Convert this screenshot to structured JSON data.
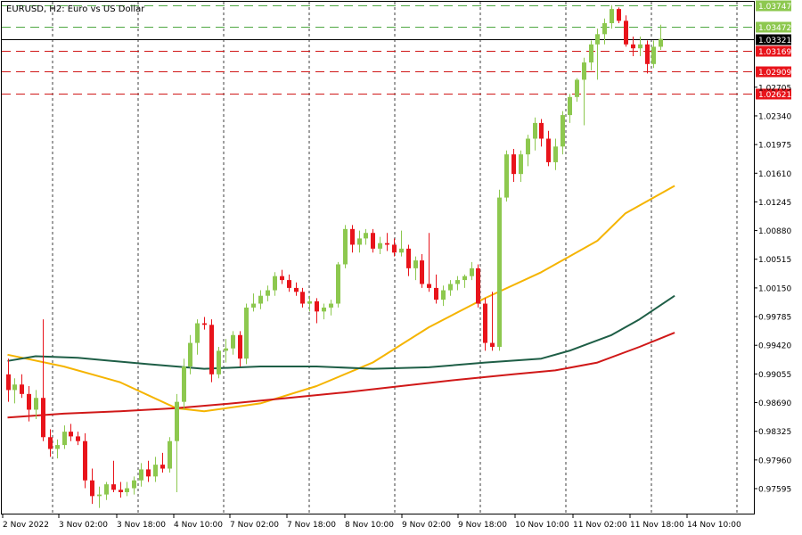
{
  "header": {
    "symbol": "EURUSD",
    "timeframe": "H2",
    "description": "Euro vs US Dollar",
    "title_text": "EURUSD, H2:  Euro vs US Dollar"
  },
  "colors": {
    "bull": "#8dc84f",
    "bear": "#e8141b",
    "ma_fast": "#f5b400",
    "ma_mid": "#1e5e46",
    "ma_slow": "#d01818",
    "resistance": "#4fa842",
    "support": "#d01818",
    "current": "#000000",
    "grid": "#000000"
  },
  "chart_data": {
    "type": "candlestick",
    "instrument": "EURUSD",
    "timeframe": "H2",
    "ylim": [
      0.9735,
      1.0385
    ],
    "grid": "vertical dashed",
    "price_ticks": [
      "1.03747",
      "1.03472",
      "1.03321",
      "1.03169",
      "1.02909",
      "1.02705",
      "1.02621",
      "1.02340",
      "1.01975",
      "1.01610",
      "1.01245",
      "1.00880",
      "1.00515",
      "1.00150",
      "0.99785",
      "0.99420",
      "0.99055",
      "0.98690",
      "0.98325",
      "0.97960",
      "0.97595"
    ],
    "time_labels": [
      "2 Nov 2022",
      "3 Nov 02:00",
      "3 Nov 18:00",
      "4 Nov 10:00",
      "7 Nov 02:00",
      "7 Nov 18:00",
      "8 Nov 10:00",
      "9 Nov 02:00",
      "9 Nov 18:00",
      "10 Nov 10:00",
      "11 Nov 02:00",
      "11 Nov 18:00",
      "14 Nov 10:00"
    ],
    "horizontal_levels": [
      {
        "price": 1.03747,
        "label": "1.03747",
        "kind": "resistance"
      },
      {
        "price": 1.03472,
        "label": "1.03472",
        "kind": "resistance"
      },
      {
        "price": 1.03321,
        "label": "1.03321",
        "kind": "current"
      },
      {
        "price": 1.03169,
        "label": "1.03169",
        "kind": "support"
      },
      {
        "price": 1.02909,
        "label": "1.02909",
        "kind": "support"
      },
      {
        "price": 1.02621,
        "label": "1.02621",
        "kind": "support"
      }
    ],
    "candles": [
      [
        0.9905,
        0.9925,
        0.987,
        0.9885
      ],
      [
        0.9885,
        0.99,
        0.9868,
        0.9892
      ],
      [
        0.9892,
        0.9905,
        0.9875,
        0.988
      ],
      [
        0.988,
        0.989,
        0.9845,
        0.986
      ],
      [
        0.986,
        0.9885,
        0.9848,
        0.9875
      ],
      [
        0.9875,
        0.9975,
        0.982,
        0.9825
      ],
      [
        0.9825,
        0.9835,
        0.98,
        0.981
      ],
      [
        0.981,
        0.9822,
        0.9798,
        0.9815
      ],
      [
        0.9815,
        0.984,
        0.981,
        0.9832
      ],
      [
        0.9832,
        0.9842,
        0.982,
        0.9826
      ],
      [
        0.9826,
        0.9832,
        0.9815,
        0.982
      ],
      [
        0.982,
        0.983,
        0.976,
        0.977
      ],
      [
        0.977,
        0.9785,
        0.974,
        0.975
      ],
      [
        0.975,
        0.9762,
        0.9735,
        0.9752
      ],
      [
        0.9752,
        0.9768,
        0.9745,
        0.9765
      ],
      [
        0.9765,
        0.9795,
        0.9755,
        0.9758
      ],
      [
        0.9758,
        0.9768,
        0.9748,
        0.9755
      ],
      [
        0.9755,
        0.9768,
        0.975,
        0.976
      ],
      [
        0.976,
        0.9775,
        0.9752,
        0.977
      ],
      [
        0.977,
        0.9792,
        0.9762,
        0.9784
      ],
      [
        0.9784,
        0.9795,
        0.9768,
        0.9775
      ],
      [
        0.9775,
        0.98,
        0.9768,
        0.979
      ],
      [
        0.979,
        0.9805,
        0.978,
        0.9785
      ],
      [
        0.9785,
        0.9825,
        0.978,
        0.982
      ],
      [
        0.982,
        0.988,
        0.9755,
        0.987
      ],
      [
        0.987,
        0.9925,
        0.986,
        0.9915
      ],
      [
        0.9915,
        0.9955,
        0.9905,
        0.9945
      ],
      [
        0.9945,
        0.9975,
        0.993,
        0.997
      ],
      [
        0.997,
        0.9978,
        0.9962,
        0.9968
      ],
      [
        0.9968,
        0.9975,
        0.9895,
        0.9905
      ],
      [
        0.9905,
        0.994,
        0.99,
        0.9935
      ],
      [
        0.9935,
        0.995,
        0.992,
        0.9938
      ],
      [
        0.9938,
        0.996,
        0.993,
        0.9955
      ],
      [
        0.9955,
        0.996,
        0.9915,
        0.9925
      ],
      [
        0.9925,
        0.9995,
        0.9918,
        0.999
      ],
      [
        0.999,
        1.0008,
        0.9985,
        0.9995
      ],
      [
        0.9995,
        1.0012,
        0.9988,
        1.0005
      ],
      [
        1.0005,
        1.0018,
        0.9998,
        1.0012
      ],
      [
        1.0012,
        1.0035,
        1.0005,
        1.003
      ],
      [
        1.003,
        1.0038,
        1.002,
        1.0025
      ],
      [
        1.0025,
        1.0032,
        1.001,
        1.0015
      ],
      [
        1.0015,
        1.0022,
        1.0005,
        1.001
      ],
      [
        1.001,
        1.0015,
        0.999,
        0.9995
      ],
      [
        0.9995,
        1.0005,
        0.9985,
        0.9998
      ],
      [
        0.9998,
        1.0002,
        0.997,
        0.9985
      ],
      [
        0.9985,
        0.9995,
        0.9975,
        0.999
      ],
      [
        0.999,
        1.0,
        0.998,
        0.9995
      ],
      [
        0.9995,
        1.0048,
        0.999,
        1.0045
      ],
      [
        1.0045,
        1.0095,
        1.004,
        1.009
      ],
      [
        1.009,
        1.0095,
        1.006,
        1.007
      ],
      [
        1.007,
        1.0088,
        1.006,
        1.0078
      ],
      [
        1.0078,
        1.009,
        1.007,
        1.0085
      ],
      [
        1.0085,
        1.009,
        1.006,
        1.0065
      ],
      [
        1.0065,
        1.008,
        1.0058,
        1.0072
      ],
      [
        1.0072,
        1.0085,
        1.0062,
        1.007
      ],
      [
        1.007,
        1.0078,
        1.0055,
        1.006
      ],
      [
        1.006,
        1.0088,
        1.0055,
        1.0065
      ],
      [
        1.0065,
        1.007,
        1.003,
        1.004
      ],
      [
        1.004,
        1.0055,
        1.0025,
        1.005
      ],
      [
        1.005,
        1.0058,
        1.0015,
        1.002
      ],
      [
        1.002,
        1.0085,
        1.001,
        1.0015
      ],
      [
        1.0015,
        1.0032,
        0.9995,
        1.0
      ],
      [
        1.0,
        1.0018,
        0.9992,
        1.0012
      ],
      [
        1.0012,
        1.0025,
        1.0005,
        1.002
      ],
      [
        1.002,
        1.003,
        1.0012,
        1.0025
      ],
      [
        1.0025,
        1.0032,
        1.0015,
        1.003
      ],
      [
        1.003,
        1.0048,
        1.0025,
        1.004
      ],
      [
        1.004,
        1.0045,
        0.999,
        0.9995
      ],
      [
        0.9995,
        1.0002,
        0.9935,
        0.9945
      ],
      [
        0.9945,
        1.001,
        0.9935,
        0.994
      ],
      [
        0.994,
        1.014,
        0.9935,
        1.013
      ],
      [
        1.013,
        1.019,
        1.0125,
        1.0185
      ],
      [
        1.0185,
        1.0192,
        1.015,
        1.016
      ],
      [
        1.016,
        1.019,
        1.015,
        1.0185
      ],
      [
        1.0185,
        1.021,
        1.017,
        1.0205
      ],
      [
        1.0205,
        1.0232,
        1.019,
        1.0225
      ],
      [
        1.0225,
        1.023,
        1.0195,
        1.0205
      ],
      [
        1.0205,
        1.0215,
        1.017,
        1.0175
      ],
      [
        1.0175,
        1.0205,
        1.0165,
        1.0195
      ],
      [
        1.0195,
        1.024,
        1.0185,
        1.0235
      ],
      [
        1.0235,
        1.0262,
        1.0225,
        1.0258
      ],
      [
        1.0258,
        1.0282,
        1.0252,
        1.028
      ],
      [
        1.028,
        1.0308,
        1.0222,
        1.0302
      ],
      [
        1.0302,
        1.033,
        1.0292,
        1.0325
      ],
      [
        1.0325,
        1.0345,
        1.028,
        1.0338
      ],
      [
        1.0338,
        1.0358,
        1.0325,
        1.0352
      ],
      [
        1.0352,
        1.0375,
        1.0345,
        1.037
      ],
      [
        1.037,
        1.0372,
        1.0352,
        1.0355
      ],
      [
        1.0355,
        1.0362,
        1.0322,
        1.0325
      ],
      [
        1.0325,
        1.0335,
        1.031,
        1.032
      ],
      [
        1.032,
        1.0335,
        1.031,
        1.0325
      ],
      [
        1.0325,
        1.033,
        1.0288,
        1.03
      ],
      [
        1.03,
        1.033,
        1.0295,
        1.0322
      ],
      [
        1.0322,
        1.035,
        1.0318,
        1.0332
      ]
    ],
    "moving_averages": [
      {
        "color": "#f5b400",
        "points": [
          [
            0,
            0.993
          ],
          [
            8,
            0.9915
          ],
          [
            16,
            0.9895
          ],
          [
            24,
            0.9862
          ],
          [
            28,
            0.9858
          ],
          [
            36,
            0.9868
          ],
          [
            44,
            0.989
          ],
          [
            52,
            0.992
          ],
          [
            60,
            0.9965
          ],
          [
            68,
            1.0002
          ],
          [
            76,
            1.0035
          ],
          [
            84,
            1.0075
          ],
          [
            88,
            1.011
          ],
          [
            95,
            1.0145
          ]
        ]
      },
      {
        "color": "#1e5e46",
        "points": [
          [
            0,
            0.9922
          ],
          [
            4,
            0.9928
          ],
          [
            10,
            0.9926
          ],
          [
            20,
            0.9918
          ],
          [
            28,
            0.9912
          ],
          [
            36,
            0.9915
          ],
          [
            44,
            0.9915
          ],
          [
            52,
            0.9912
          ],
          [
            60,
            0.9914
          ],
          [
            68,
            0.992
          ],
          [
            76,
            0.9925
          ],
          [
            80,
            0.9935
          ],
          [
            86,
            0.9955
          ],
          [
            90,
            0.9975
          ],
          [
            95,
            1.0005
          ]
        ]
      },
      {
        "color": "#d01818",
        "points": [
          [
            0,
            0.985
          ],
          [
            8,
            0.9855
          ],
          [
            16,
            0.9858
          ],
          [
            24,
            0.9862
          ],
          [
            32,
            0.9868
          ],
          [
            40,
            0.9875
          ],
          [
            48,
            0.9882
          ],
          [
            56,
            0.989
          ],
          [
            64,
            0.9898
          ],
          [
            72,
            0.9905
          ],
          [
            78,
            0.991
          ],
          [
            84,
            0.992
          ],
          [
            90,
            0.994
          ],
          [
            95,
            0.9958
          ]
        ]
      }
    ]
  }
}
